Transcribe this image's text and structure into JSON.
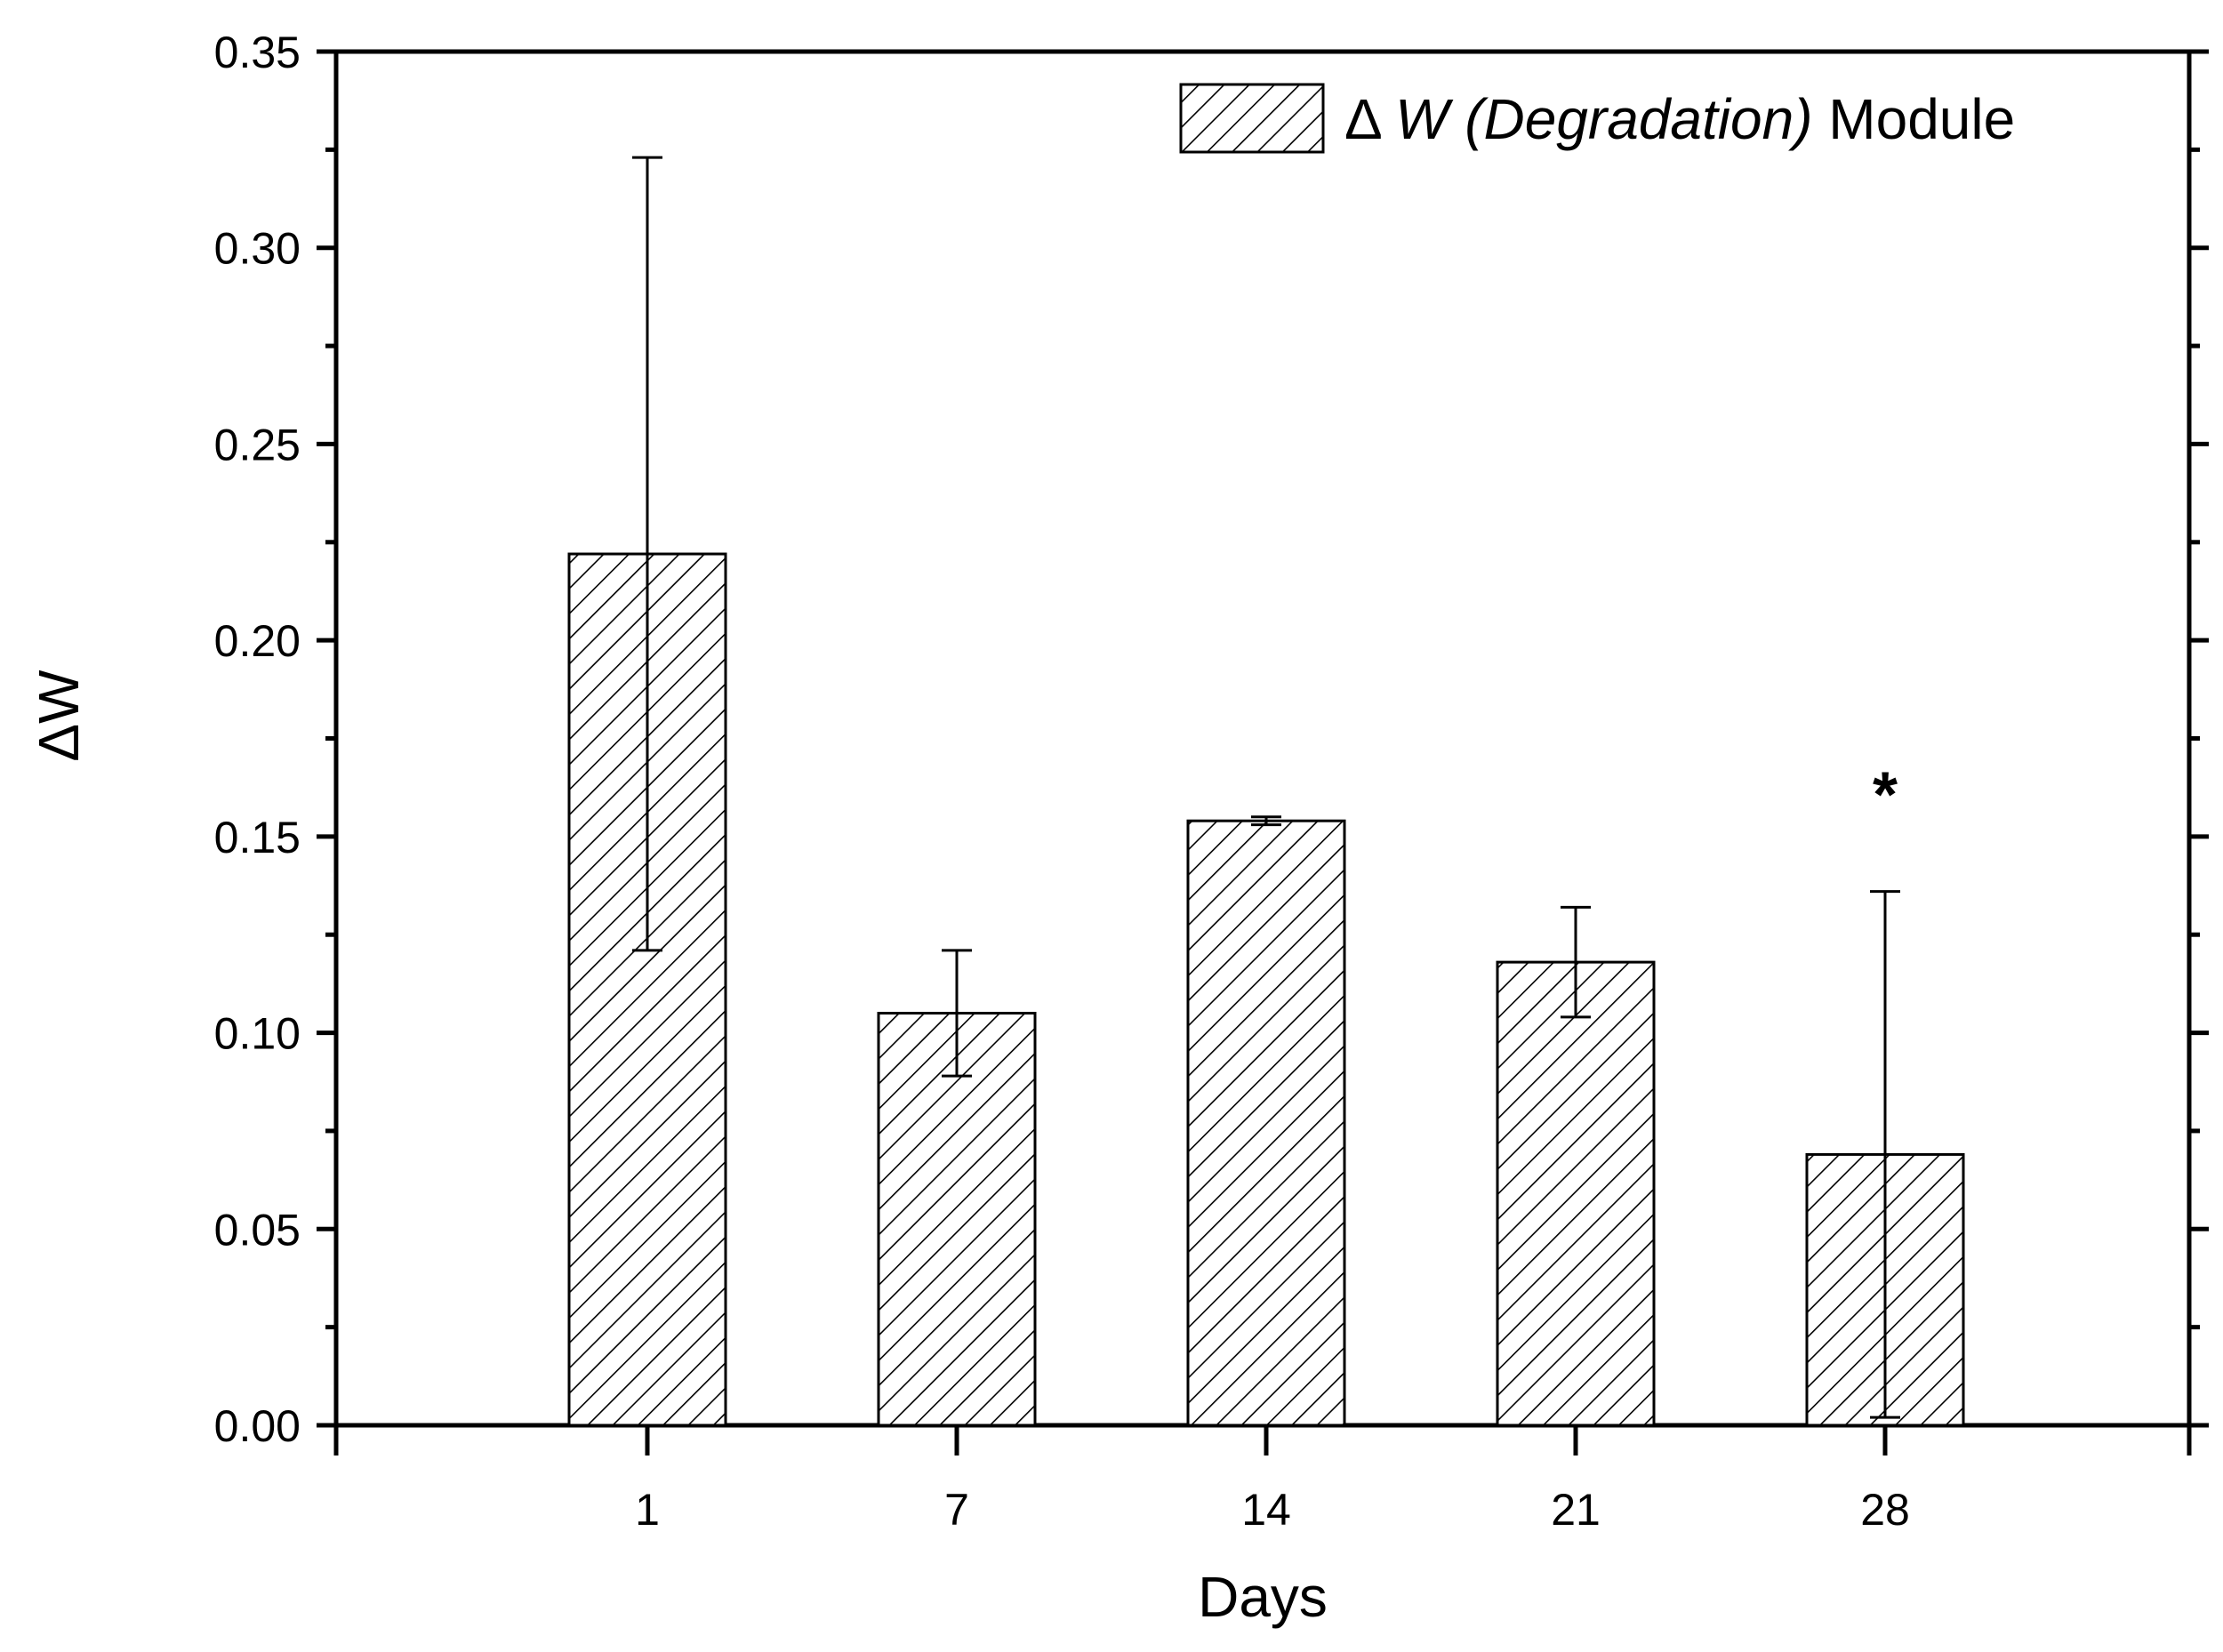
{
  "chart_data": {
    "type": "bar",
    "title": "",
    "xlabel": "Days",
    "ylabel": "ΔW",
    "categories": [
      "1",
      "7",
      "14",
      "21",
      "28"
    ],
    "series": [
      {
        "name": "Δ W (Degradation) Module",
        "legend_symbol": "Δ",
        "legend_italic": "W (Degradation)",
        "legend_rest": "Module",
        "values": [
          0.222,
          0.105,
          0.154,
          0.118,
          0.069
        ],
        "error_high": [
          0.323,
          0.121,
          0.155,
          0.132,
          0.136
        ],
        "error_low": [
          0.121,
          0.089,
          0.153,
          0.104,
          0.002
        ]
      }
    ],
    "ylim": [
      0,
      0.35
    ],
    "yticks": [
      "0.00",
      "0.05",
      "0.10",
      "0.15",
      "0.20",
      "0.25",
      "0.30",
      "0.35"
    ],
    "grid": false,
    "legend_position": "top-right",
    "annotations": [
      {
        "category": "28",
        "text": "*",
        "y": 0.161
      }
    ],
    "colors": {
      "bar_fill": "#ffffff",
      "hatch": "#000000",
      "axis": "#000000"
    }
  }
}
